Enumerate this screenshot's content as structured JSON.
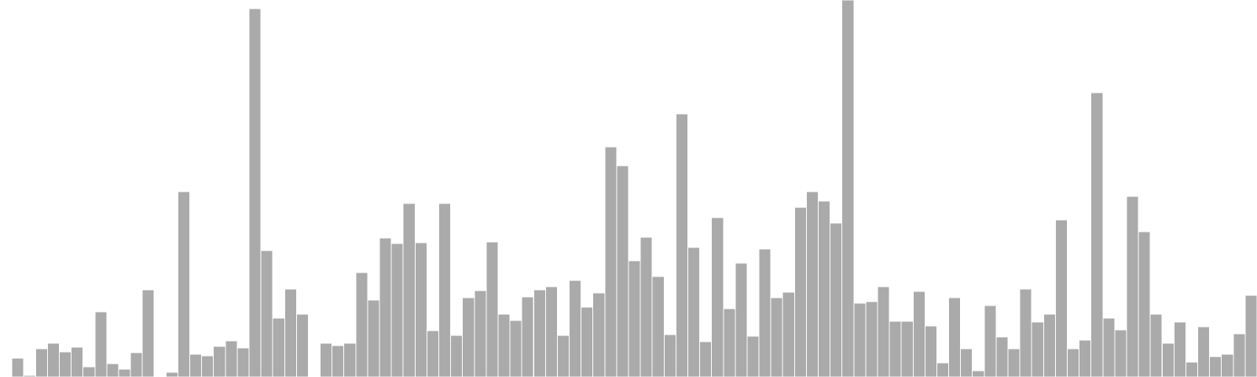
{
  "chart_data": {
    "type": "bar",
    "title": "",
    "xlabel": "",
    "ylabel": "",
    "ylim": [
      0,
      480
    ],
    "grid": false,
    "legend": "none",
    "axes_visible": false,
    "bar_color": "#aaaaaa",
    "values": [
      1,
      24,
      2,
      36,
      43,
      32,
      38,
      13,
      83,
      17,
      10,
      31,
      111,
      0,
      6,
      236,
      29,
      27,
      39,
      46,
      37,
      469,
      161,
      75,
      112,
      80,
      0,
      43,
      40,
      43,
      133,
      98,
      177,
      170,
      221,
      171,
      59,
      221,
      53,
      101,
      110,
      172,
      80,
      72,
      102,
      111,
      115,
      53,
      123,
      89,
      107,
      293,
      269,
      148,
      178,
      128,
      54,
      335,
      165,
      45,
      203,
      87,
      145,
      52,
      163,
      101,
      108,
      216,
      236,
      224,
      196,
      480,
      94,
      96,
      115,
      71,
      71,
      109,
      65,
      18,
      101,
      36,
      8,
      91,
      51,
      36,
      112,
      70,
      80,
      200,
      36,
      47,
      362,
      75,
      60,
      230,
      185,
      80,
      43,
      70,
      19,
      64,
      26,
      29,
      55,
      104
    ]
  }
}
